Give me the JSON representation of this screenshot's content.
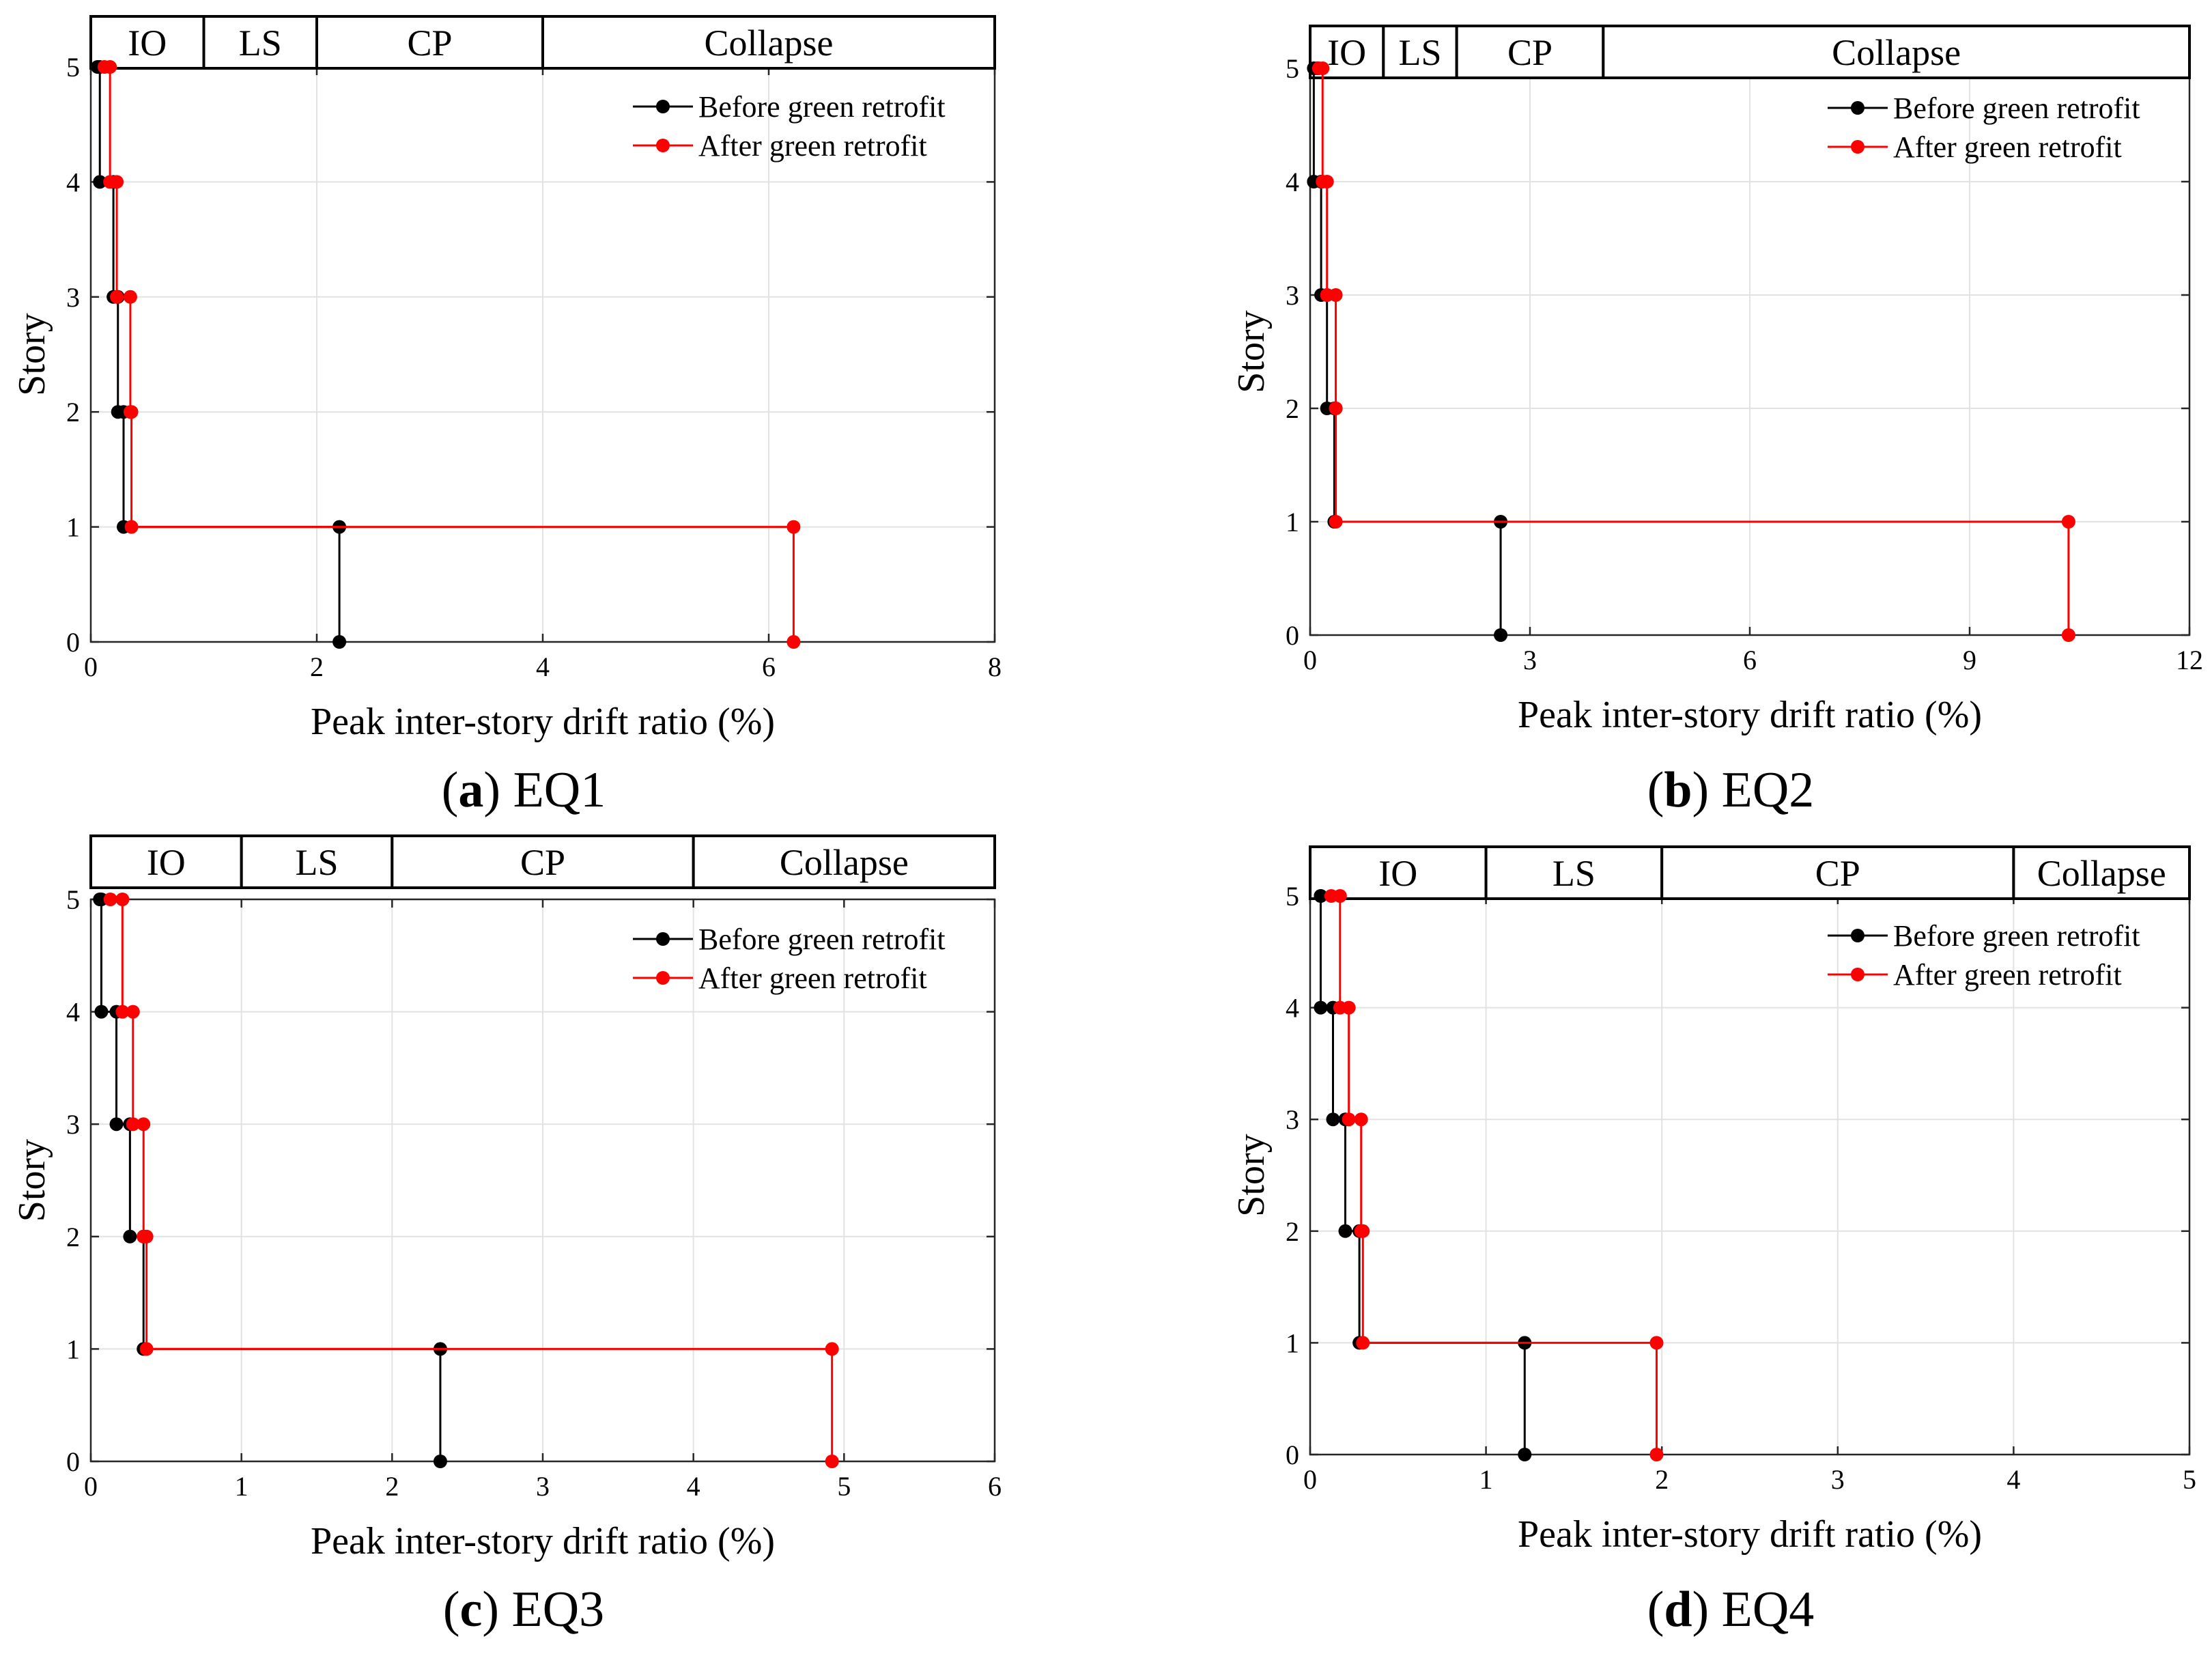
{
  "chart_data": [
    {
      "type": "line",
      "panel_letter": "a",
      "panel_name": "EQ1",
      "caption": "(a) EQ1",
      "xlabel": "Peak inter-story drift ratio (%)",
      "ylabel": "Story",
      "xlim": [
        0,
        8
      ],
      "ylim": [
        0,
        5
      ],
      "xticks": [
        0,
        2,
        4,
        6,
        8
      ],
      "yticks": [
        0,
        1,
        2,
        3,
        4,
        5
      ],
      "grid": true,
      "legend_position": "top-right",
      "performance_bands": [
        {
          "label": "IO",
          "from": 0,
          "to": 1
        },
        {
          "label": "LS",
          "from": 1,
          "to": 2
        },
        {
          "label": "CP",
          "from": 2,
          "to": 4
        },
        {
          "label": "Collapse",
          "from": 4,
          "to": 8
        }
      ],
      "series": [
        {
          "name": "Before green retrofit",
          "color": "#000000",
          "story": [
            0,
            1,
            2,
            3,
            4,
            5
          ],
          "drift": [
            2.2,
            0.29,
            0.24,
            0.2,
            0.08,
            0.06
          ]
        },
        {
          "name": "After green retrofit",
          "color": "#ff0000",
          "story": [
            0,
            1,
            2,
            3,
            4,
            5
          ],
          "drift": [
            6.22,
            0.36,
            0.35,
            0.23,
            0.17,
            0.12
          ]
        }
      ]
    },
    {
      "type": "line",
      "panel_letter": "b",
      "panel_name": "EQ2",
      "caption": "(b) EQ2",
      "xlabel": "Peak inter-story drift ratio (%)",
      "ylabel": "Story",
      "xlim": [
        0,
        12
      ],
      "ylim": [
        0,
        5
      ],
      "xticks": [
        0,
        3,
        6,
        9,
        12
      ],
      "yticks": [
        0,
        1,
        2,
        3,
        4,
        5
      ],
      "grid": true,
      "legend_position": "top-right",
      "performance_bands": [
        {
          "label": "IO",
          "from": 0,
          "to": 1
        },
        {
          "label": "LS",
          "from": 1,
          "to": 2
        },
        {
          "label": "CP",
          "from": 2,
          "to": 4
        },
        {
          "label": "Collapse",
          "from": 4,
          "to": 12
        }
      ],
      "series": [
        {
          "name": "Before green retrofit",
          "color": "#000000",
          "story": [
            0,
            1,
            2,
            3,
            4,
            5
          ],
          "drift": [
            2.6,
            0.33,
            0.23,
            0.15,
            0.05,
            0.1
          ]
        },
        {
          "name": "After green retrofit",
          "color": "#ff0000",
          "story": [
            0,
            1,
            2,
            3,
            4,
            5
          ],
          "drift": [
            10.35,
            0.35,
            0.35,
            0.23,
            0.17,
            0.12
          ]
        }
      ]
    },
    {
      "type": "line",
      "panel_letter": "c",
      "panel_name": "EQ3",
      "caption": "(c) EQ3",
      "xlabel": "Peak inter-story drift ratio (%)",
      "ylabel": "Story",
      "xlim": [
        0,
        6
      ],
      "ylim": [
        0,
        5
      ],
      "xticks": [
        0,
        1,
        2,
        3,
        4,
        5,
        6
      ],
      "yticks": [
        0,
        1,
        2,
        3,
        4,
        5
      ],
      "grid": true,
      "legend_position": "top-right",
      "performance_bands": [
        {
          "label": "IO",
          "from": 0,
          "to": 1
        },
        {
          "label": "LS",
          "from": 1,
          "to": 2
        },
        {
          "label": "CP",
          "from": 2,
          "to": 4
        },
        {
          "label": "Collapse",
          "from": 4,
          "to": 6
        }
      ],
      "series": [
        {
          "name": "Before green retrofit",
          "color": "#000000",
          "story": [
            0,
            1,
            2,
            3,
            4,
            5
          ],
          "drift": [
            2.32,
            0.35,
            0.26,
            0.17,
            0.07,
            0.06
          ]
        },
        {
          "name": "After green retrofit",
          "color": "#ff0000",
          "story": [
            0,
            1,
            2,
            3,
            4,
            5
          ],
          "drift": [
            4.92,
            0.37,
            0.35,
            0.28,
            0.21,
            0.13
          ]
        }
      ]
    },
    {
      "type": "line",
      "panel_letter": "d",
      "panel_name": "EQ4",
      "caption": "(d) EQ4",
      "xlabel": "Peak inter-story drift ratio (%)",
      "ylabel": "Story",
      "xlim": [
        0,
        5
      ],
      "ylim": [
        0,
        5
      ],
      "xticks": [
        0,
        1,
        2,
        3,
        4,
        5
      ],
      "yticks": [
        0,
        1,
        2,
        3,
        4,
        5
      ],
      "grid": true,
      "legend_position": "top-right",
      "performance_bands": [
        {
          "label": "IO",
          "from": 0,
          "to": 1
        },
        {
          "label": "LS",
          "from": 1,
          "to": 2
        },
        {
          "label": "CP",
          "from": 2,
          "to": 4
        },
        {
          "label": "Collapse",
          "from": 4,
          "to": 5
        }
      ],
      "series": [
        {
          "name": "Before green retrofit",
          "color": "#000000",
          "story": [
            0,
            1,
            2,
            3,
            4,
            5
          ],
          "drift": [
            1.22,
            0.28,
            0.2,
            0.13,
            0.06,
            0.06
          ]
        },
        {
          "name": "After green retrofit",
          "color": "#ff0000",
          "story": [
            0,
            1,
            2,
            3,
            4,
            5
          ],
          "drift": [
            1.97,
            0.3,
            0.29,
            0.22,
            0.17,
            0.12
          ]
        }
      ]
    }
  ]
}
